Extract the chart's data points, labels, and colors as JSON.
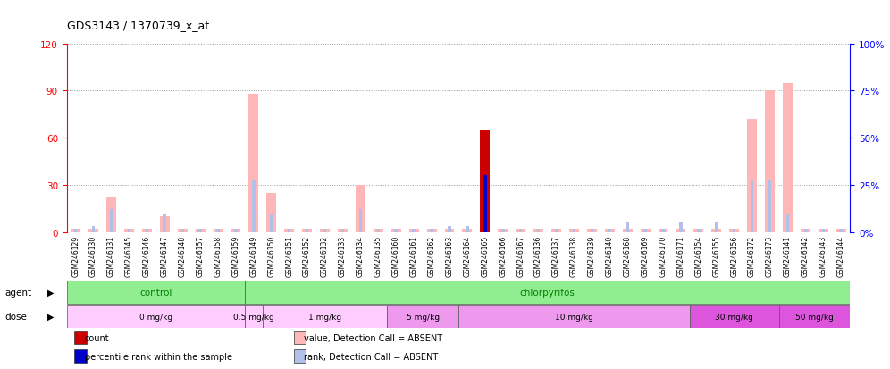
{
  "title": "GDS3143 / 1370739_x_at",
  "samples": [
    "GSM246129",
    "GSM246130",
    "GSM246131",
    "GSM246145",
    "GSM246146",
    "GSM246147",
    "GSM246148",
    "GSM246157",
    "GSM246158",
    "GSM246159",
    "GSM246149",
    "GSM246150",
    "GSM246151",
    "GSM246152",
    "GSM246132",
    "GSM246133",
    "GSM246134",
    "GSM246135",
    "GSM246160",
    "GSM246161",
    "GSM246162",
    "GSM246163",
    "GSM246164",
    "GSM246165",
    "GSM246166",
    "GSM246167",
    "GSM246136",
    "GSM246137",
    "GSM246138",
    "GSM246139",
    "GSM246140",
    "GSM246168",
    "GSM246169",
    "GSM246170",
    "GSM246171",
    "GSM246154",
    "GSM246155",
    "GSM246156",
    "GSM246172",
    "GSM246173",
    "GSM246141",
    "GSM246142",
    "GSM246143",
    "GSM246144"
  ],
  "value_bars": [
    2,
    2,
    22,
    2,
    2,
    10,
    2,
    2,
    2,
    2,
    88,
    25,
    2,
    2,
    2,
    2,
    30,
    2,
    2,
    2,
    2,
    2,
    2,
    65,
    2,
    2,
    2,
    2,
    2,
    2,
    2,
    2,
    2,
    2,
    2,
    2,
    2,
    2,
    72,
    90,
    95,
    2,
    2,
    2
  ],
  "value_absent": [
    true,
    true,
    true,
    true,
    true,
    true,
    true,
    true,
    true,
    true,
    true,
    true,
    true,
    true,
    true,
    true,
    true,
    true,
    true,
    true,
    true,
    true,
    true,
    false,
    true,
    true,
    true,
    true,
    true,
    true,
    true,
    true,
    true,
    true,
    true,
    true,
    true,
    true,
    true,
    true,
    true,
    true,
    true,
    true
  ],
  "rank_bars": [
    2,
    3,
    12,
    2,
    2,
    10,
    2,
    2,
    2,
    2,
    28,
    10,
    2,
    2,
    2,
    2,
    12,
    2,
    2,
    2,
    2,
    3,
    3,
    30,
    2,
    2,
    2,
    2,
    2,
    2,
    2,
    5,
    2,
    2,
    5,
    2,
    5,
    2,
    28,
    28,
    10,
    2,
    2,
    2
  ],
  "rank_absent": [
    true,
    true,
    true,
    true,
    true,
    true,
    true,
    true,
    true,
    true,
    true,
    true,
    true,
    true,
    true,
    true,
    true,
    true,
    true,
    true,
    true,
    true,
    true,
    false,
    true,
    true,
    true,
    true,
    true,
    true,
    true,
    true,
    true,
    true,
    true,
    true,
    true,
    true,
    true,
    true,
    true,
    true,
    true,
    true
  ],
  "count_val": 65,
  "count_idx": 23,
  "percentile_val": 30,
  "percentile_idx": 23,
  "agent_groups": [
    {
      "label": "control",
      "start": 0,
      "end": 10,
      "color": "#90ee90"
    },
    {
      "label": "chlorpyrifos",
      "start": 10,
      "end": 44,
      "color": "#90ee90"
    }
  ],
  "dose_groups": [
    {
      "label": "0 mg/kg",
      "start": 0,
      "end": 10,
      "color": "#ffccff"
    },
    {
      "label": "0.5 mg/kg",
      "start": 10,
      "end": 11,
      "color": "#ffccff"
    },
    {
      "label": "1 mg/kg",
      "start": 11,
      "end": 18,
      "color": "#ffccff"
    },
    {
      "label": "5 mg/kg",
      "start": 18,
      "end": 22,
      "color": "#ee99ee"
    },
    {
      "label": "10 mg/kg",
      "start": 22,
      "end": 35,
      "color": "#ee99ee"
    },
    {
      "label": "30 mg/kg",
      "start": 35,
      "end": 40,
      "color": "#dd55dd"
    },
    {
      "label": "50 mg/kg",
      "start": 40,
      "end": 44,
      "color": "#dd55dd"
    }
  ],
  "ylim_left": [
    0,
    120
  ],
  "ylim_right": [
    0,
    100
  ],
  "yticks_left": [
    0,
    30,
    60,
    90,
    120
  ],
  "yticks_right": [
    0,
    25,
    50,
    75,
    100
  ],
  "color_value_absent": "#ffb6b6",
  "color_value_present": "#cc0000",
  "color_rank_absent": "#b0c0e8",
  "color_rank_present": "#0000cc",
  "color_count": "#cc0000",
  "color_percentile": "#0000cc",
  "background_color": "#ffffff",
  "grid_color": "#999999"
}
